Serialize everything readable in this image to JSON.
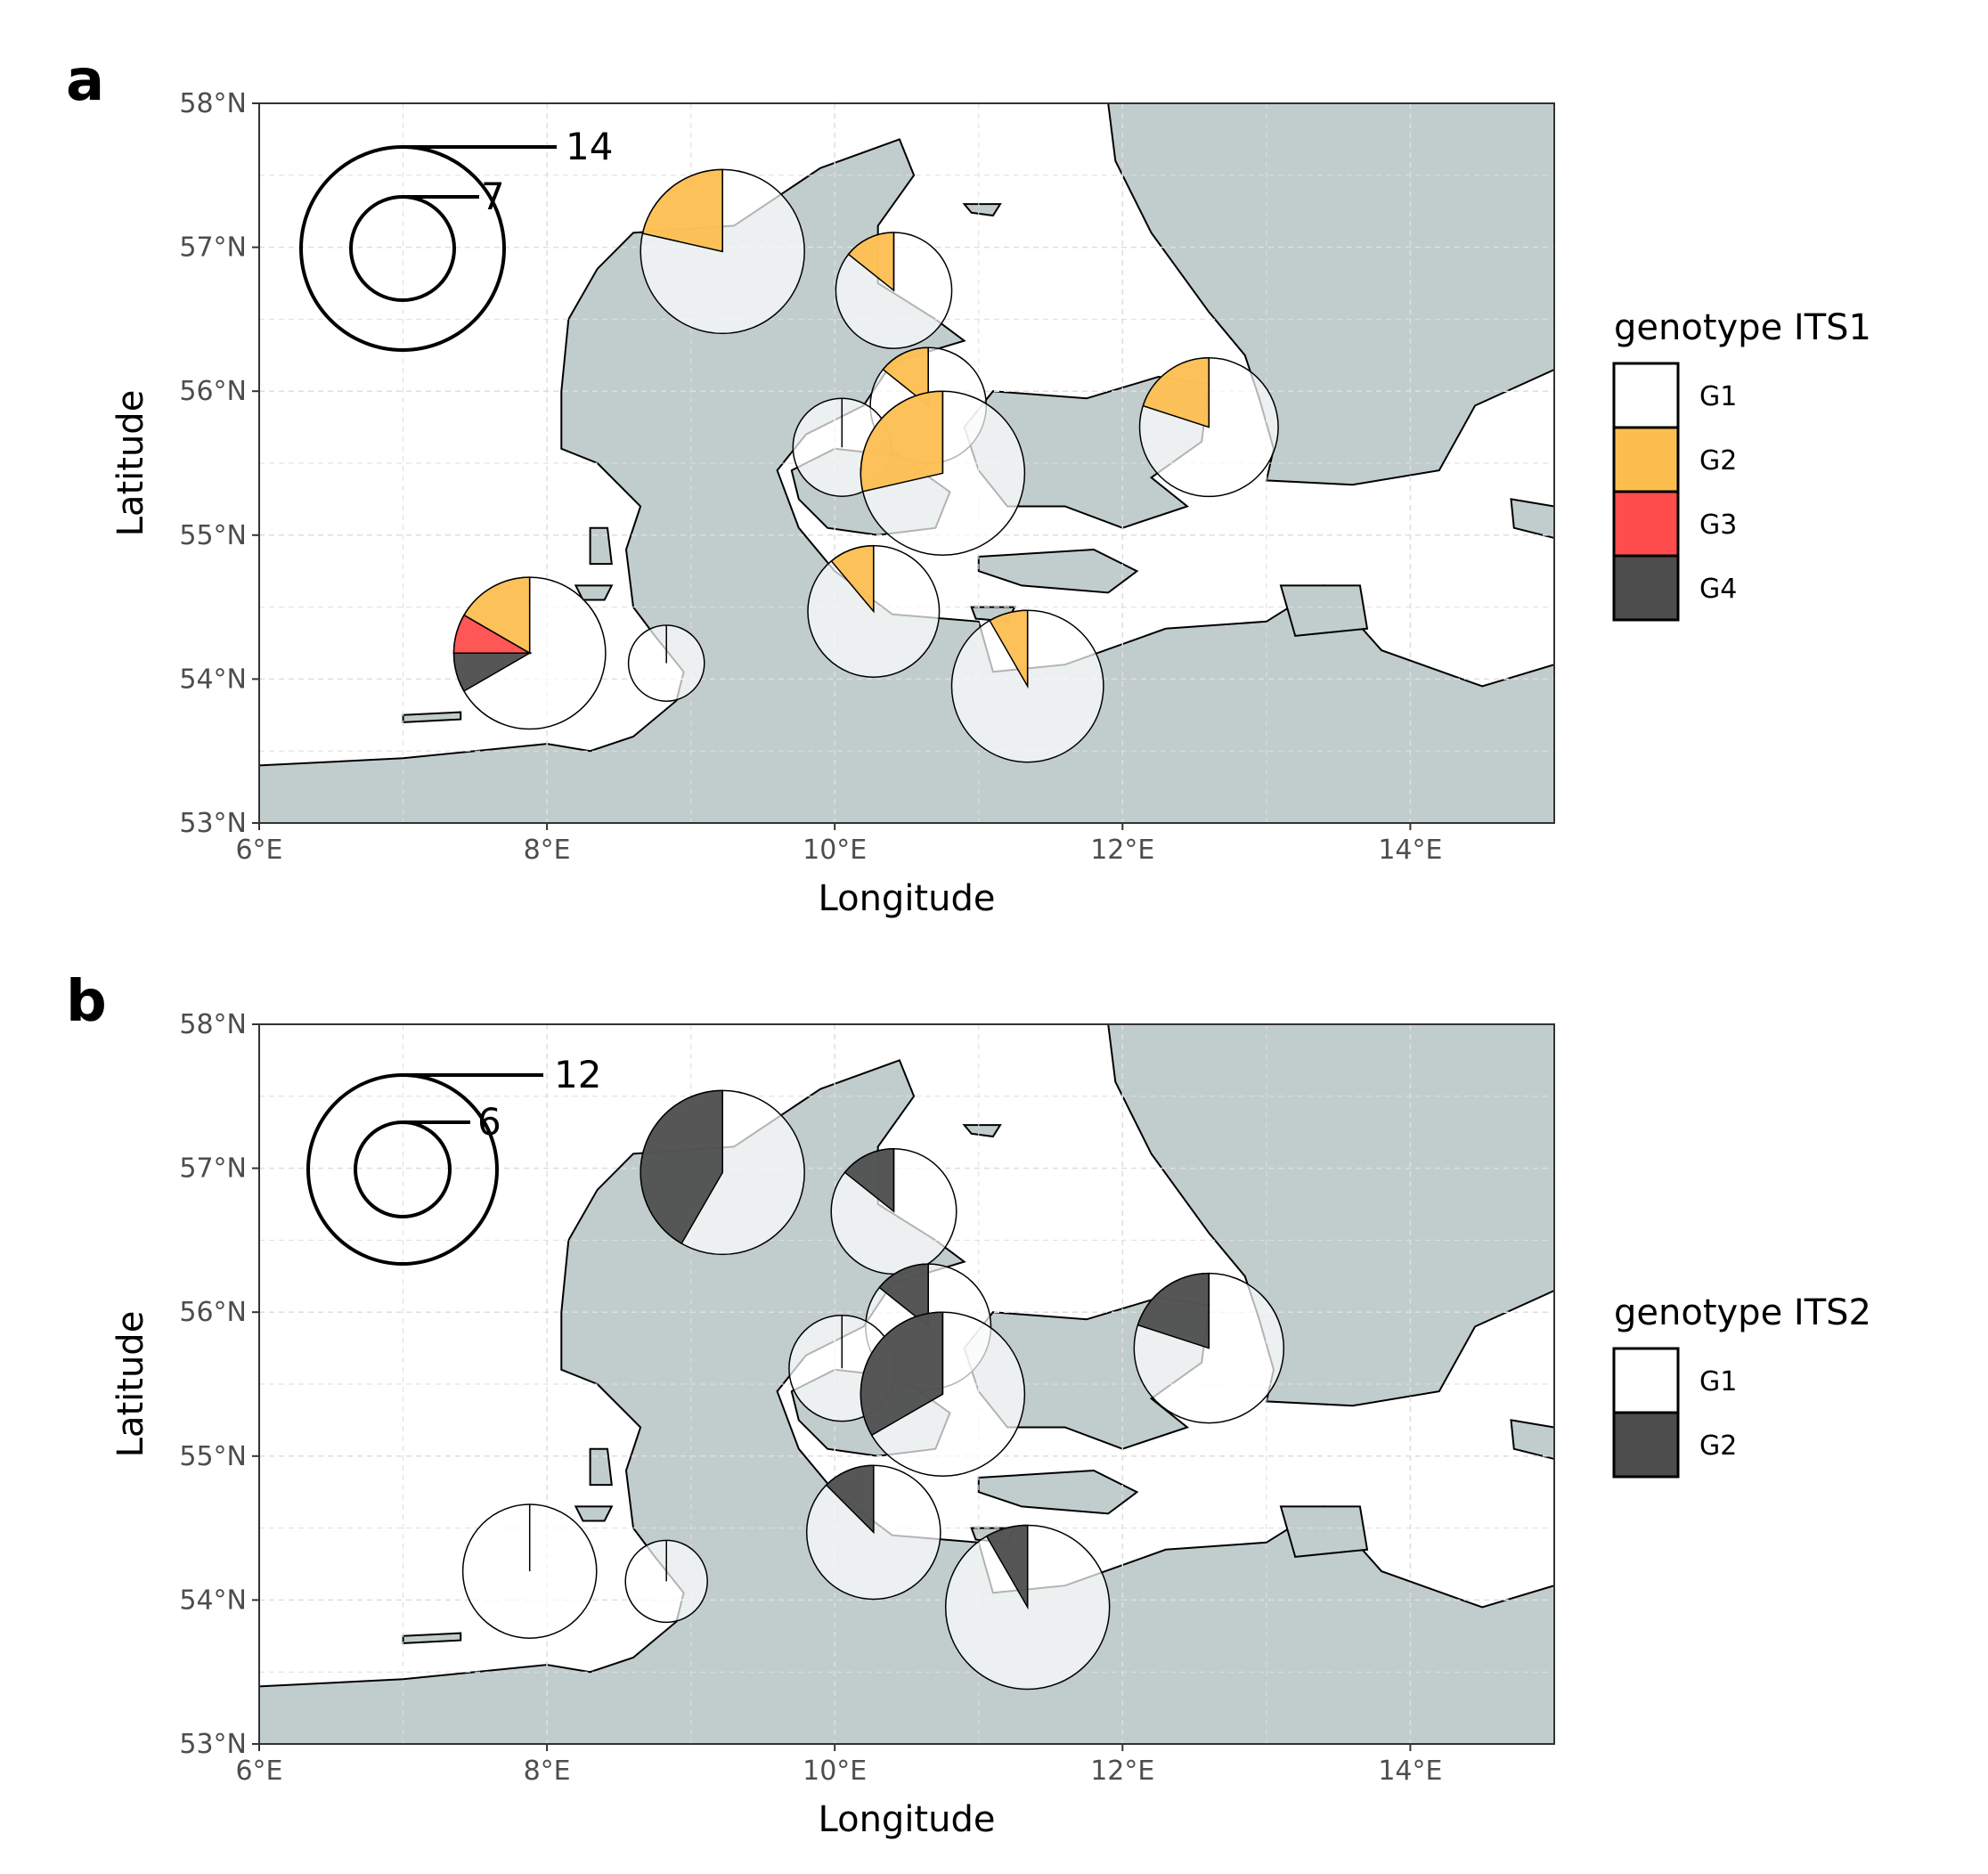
{
  "panels": [
    {
      "label": "a",
      "xlabel": "Longitude",
      "ylabel": "Latitude",
      "x_ticks": [
        "6°E",
        "8°E",
        "10°E",
        "12°E",
        "14°E"
      ],
      "y_ticks": [
        "53°N",
        "54°N",
        "55°N",
        "56°N",
        "57°N",
        "58°N"
      ],
      "legend": {
        "title": "genotype ITS1",
        "entries": [
          {
            "label": "G1",
            "color": "#ffffff"
          },
          {
            "label": "G2",
            "color": "#fcbe4f"
          },
          {
            "label": "G3",
            "color": "#ff4d4d"
          },
          {
            "label": "G4",
            "color": "#4d4d4d"
          }
        ]
      },
      "size_scale": {
        "large_label": "14",
        "small_label": "7"
      }
    },
    {
      "label": "b",
      "xlabel": "Longitude",
      "ylabel": "Latitude",
      "x_ticks": [
        "6°E",
        "8°E",
        "10°E",
        "12°E",
        "14°E"
      ],
      "y_ticks": [
        "53°N",
        "54°N",
        "55°N",
        "56°N",
        "57°N",
        "58°N"
      ],
      "legend": {
        "title": "genotype ITS2",
        "entries": [
          {
            "label": "G1",
            "color": "#ffffff"
          },
          {
            "label": "G2",
            "color": "#4d4d4d"
          }
        ]
      },
      "size_scale": {
        "large_label": "12",
        "small_label": "6"
      }
    }
  ],
  "chart_data": [
    {
      "type": "map-pie",
      "xlim": [
        6,
        15
      ],
      "ylim": [
        53,
        58
      ],
      "grid": true,
      "legend_position": "right",
      "colors": {
        "land": "#c1cdcc",
        "sea": "#ffffff",
        "G1": "#ffffff",
        "G2": "#fcbe4f",
        "G3": "#ff4d4d",
        "G4": "#4d4d4d"
      },
      "sites": [
        {
          "lon": 9.22,
          "lat": 56.97,
          "n": 14,
          "counts": {
            "G1": 11,
            "G2": 3,
            "G3": 0,
            "G4": 0
          }
        },
        {
          "lon": 10.41,
          "lat": 56.7,
          "n": 7,
          "counts": {
            "G1": 6,
            "G2": 1,
            "G3": 0,
            "G4": 0
          }
        },
        {
          "lon": 10.65,
          "lat": 55.9,
          "n": 7,
          "counts": {
            "G1": 6,
            "G2": 1,
            "G3": 0,
            "G4": 0
          }
        },
        {
          "lon": 10.05,
          "lat": 55.61,
          "n": 5,
          "counts": {
            "G1": 5,
            "G2": 0,
            "G3": 0,
            "G4": 0
          }
        },
        {
          "lon": 10.75,
          "lat": 55.43,
          "n": 14,
          "counts": {
            "G1": 10,
            "G2": 4,
            "G3": 0,
            "G4": 0
          }
        },
        {
          "lon": 12.6,
          "lat": 55.75,
          "n": 10,
          "counts": {
            "G1": 8,
            "G2": 2,
            "G3": 0,
            "G4": 0
          }
        },
        {
          "lon": 10.27,
          "lat": 54.47,
          "n": 9,
          "counts": {
            "G1": 8,
            "G2": 1,
            "G3": 0,
            "G4": 0
          }
        },
        {
          "lon": 7.88,
          "lat": 54.18,
          "n": 12,
          "counts": {
            "G1": 8,
            "G2": 2,
            "G3": 1,
            "G4": 1
          }
        },
        {
          "lon": 8.83,
          "lat": 54.11,
          "n": 3,
          "counts": {
            "G1": 3,
            "G2": 0,
            "G3": 0,
            "G4": 0
          }
        },
        {
          "lon": 11.34,
          "lat": 53.95,
          "n": 12,
          "counts": {
            "G1": 11,
            "G2": 1,
            "G3": 0,
            "G4": 0
          }
        }
      ]
    },
    {
      "type": "map-pie",
      "xlim": [
        6,
        15
      ],
      "ylim": [
        53,
        58
      ],
      "grid": true,
      "legend_position": "right",
      "colors": {
        "land": "#c1cdcc",
        "sea": "#ffffff",
        "G1": "#ffffff",
        "G2": "#4d4d4d"
      },
      "sites": [
        {
          "lon": 9.22,
          "lat": 56.97,
          "n": 12,
          "counts": {
            "G1": 7,
            "G2": 5
          }
        },
        {
          "lon": 10.41,
          "lat": 56.7,
          "n": 7,
          "counts": {
            "G1": 6,
            "G2": 1
          }
        },
        {
          "lon": 10.65,
          "lat": 55.9,
          "n": 7,
          "counts": {
            "G1": 6,
            "G2": 1
          }
        },
        {
          "lon": 10.05,
          "lat": 55.61,
          "n": 5,
          "counts": {
            "G1": 5,
            "G2": 0
          }
        },
        {
          "lon": 10.75,
          "lat": 55.43,
          "n": 12,
          "counts": {
            "G1": 8,
            "G2": 4
          }
        },
        {
          "lon": 12.6,
          "lat": 55.75,
          "n": 10,
          "counts": {
            "G1": 8,
            "G2": 2
          }
        },
        {
          "lon": 10.27,
          "lat": 54.47,
          "n": 8,
          "counts": {
            "G1": 7,
            "G2": 1
          }
        },
        {
          "lon": 7.88,
          "lat": 54.2,
          "n": 8,
          "counts": {
            "G1": 8,
            "G2": 0
          }
        },
        {
          "lon": 8.83,
          "lat": 54.13,
          "n": 3,
          "counts": {
            "G1": 3,
            "G2": 0
          }
        },
        {
          "lon": 11.34,
          "lat": 53.95,
          "n": 12,
          "counts": {
            "G1": 11,
            "G2": 1
          }
        }
      ]
    }
  ]
}
